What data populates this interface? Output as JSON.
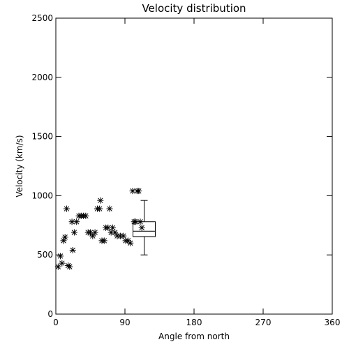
{
  "chart_data": {
    "type": "scatter",
    "title": "Velocity distribution",
    "xlabel": "Angle from north",
    "ylabel": "Velocity (km/s)",
    "xlim": [
      0,
      360
    ],
    "ylim": [
      0,
      2500
    ],
    "xticks": [
      0,
      90,
      180,
      270,
      360
    ],
    "yticks": [
      0,
      500,
      1000,
      1500,
      2000,
      2500
    ],
    "marker": "asterisk",
    "grid": false,
    "series": [
      {
        "points": [
          [
            3,
            400
          ],
          [
            6,
            490
          ],
          [
            8,
            430
          ],
          [
            10,
            620
          ],
          [
            12,
            650
          ],
          [
            14,
            890
          ],
          [
            16,
            410
          ],
          [
            18,
            400
          ],
          [
            21,
            780
          ],
          [
            22,
            540
          ],
          [
            24,
            690
          ],
          [
            27,
            780
          ],
          [
            30,
            830
          ],
          [
            33,
            830
          ],
          [
            36,
            830
          ],
          [
            39,
            830
          ],
          [
            42,
            690
          ],
          [
            45,
            690
          ],
          [
            48,
            660
          ],
          [
            51,
            690
          ],
          [
            54,
            890
          ],
          [
            57,
            890
          ],
          [
            58,
            960
          ],
          [
            60,
            620
          ],
          [
            63,
            620
          ],
          [
            65,
            730
          ],
          [
            68,
            730
          ],
          [
            70,
            890
          ],
          [
            72,
            690
          ],
          [
            74,
            730
          ],
          [
            77,
            690
          ],
          [
            80,
            660
          ],
          [
            84,
            660
          ],
          [
            88,
            660
          ],
          [
            91,
            620
          ],
          [
            94,
            620
          ],
          [
            97,
            600
          ],
          [
            100,
            1040
          ],
          [
            102,
            780
          ],
          [
            104,
            780
          ],
          [
            106,
            1040
          ],
          [
            108,
            1040
          ],
          [
            110,
            780
          ],
          [
            112,
            730
          ]
        ]
      }
    ],
    "boxplot": {
      "x": 115,
      "min": 500,
      "q1": 655,
      "median": 700,
      "q3": 780,
      "max": 960
    }
  }
}
